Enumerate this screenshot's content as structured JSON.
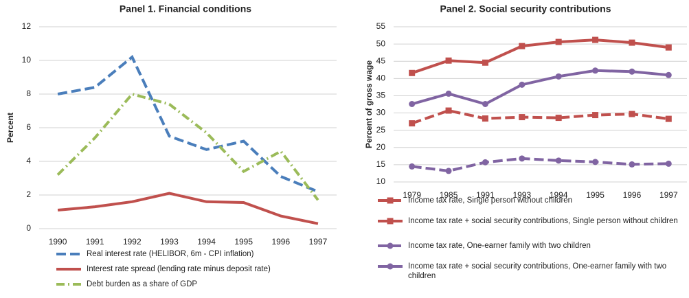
{
  "chart_data": [
    {
      "type": "line",
      "title": "Panel 1. Financial conditions",
      "y_label": "Percent",
      "categories": [
        "1990",
        "1991",
        "1992",
        "1993",
        "1994",
        "1995",
        "1996",
        "1997"
      ],
      "ylim": [
        0,
        12
      ],
      "yticks": [
        0,
        2,
        4,
        6,
        8,
        10,
        12
      ],
      "grid": true,
      "series": [
        {
          "name": "Real interest rate (HELIBOR, 6m - CPI inflation)",
          "color": "#4a7ebb",
          "line_style": "dashed",
          "marker": "none",
          "values": [
            8.0,
            8.4,
            10.2,
            5.5,
            4.7,
            5.2,
            3.1,
            2.2
          ]
        },
        {
          "name": "Interest rate spread (lending rate minus deposit rate)",
          "color": "#c0504d",
          "line_style": "solid",
          "marker": "none",
          "values": [
            1.1,
            1.3,
            1.6,
            2.1,
            1.6,
            1.55,
            0.75,
            0.3
          ]
        },
        {
          "name": "Debt burden as a share of GDP",
          "color": "#9bbb59",
          "line_style": "dashdot",
          "marker": "none",
          "values": [
            3.2,
            5.4,
            8.0,
            7.4,
            5.7,
            3.4,
            4.6,
            1.7
          ]
        }
      ]
    },
    {
      "type": "line",
      "title": "Panel 2. Social security contributions",
      "y_label": "Percent of gross wage",
      "categories": [
        "1979",
        "1985",
        "1991",
        "1993",
        "1994",
        "1995",
        "1996",
        "1997"
      ],
      "ylim": [
        10,
        55
      ],
      "yticks": [
        10,
        15,
        20,
        25,
        30,
        35,
        40,
        45,
        50,
        55
      ],
      "grid": true,
      "series": [
        {
          "name": "Income tax rate, Single person without children",
          "color": "#c0504d",
          "line_style": "dashed",
          "marker": "square",
          "values": [
            27.0,
            30.7,
            28.4,
            28.8,
            28.6,
            29.4,
            29.7,
            28.3
          ]
        },
        {
          "name": "Income tax rate + social security contributions, Single person without children",
          "color": "#c0504d",
          "line_style": "solid",
          "marker": "square",
          "values": [
            41.6,
            45.2,
            44.6,
            49.4,
            50.6,
            51.2,
            50.4,
            49.0
          ]
        },
        {
          "name": "Income tax rate, One-earner family with two children",
          "color": "#8064a2",
          "line_style": "dashed",
          "marker": "circle",
          "values": [
            14.5,
            13.2,
            15.7,
            16.8,
            16.2,
            15.8,
            15.1,
            15.3
          ]
        },
        {
          "name": "Income tax rate + social security contributions, One-earner family with two children",
          "color": "#8064a2",
          "line_style": "solid",
          "marker": "circle",
          "values": [
            32.6,
            35.6,
            32.6,
            38.2,
            40.6,
            42.3,
            42.0,
            41.0
          ]
        }
      ]
    }
  ]
}
